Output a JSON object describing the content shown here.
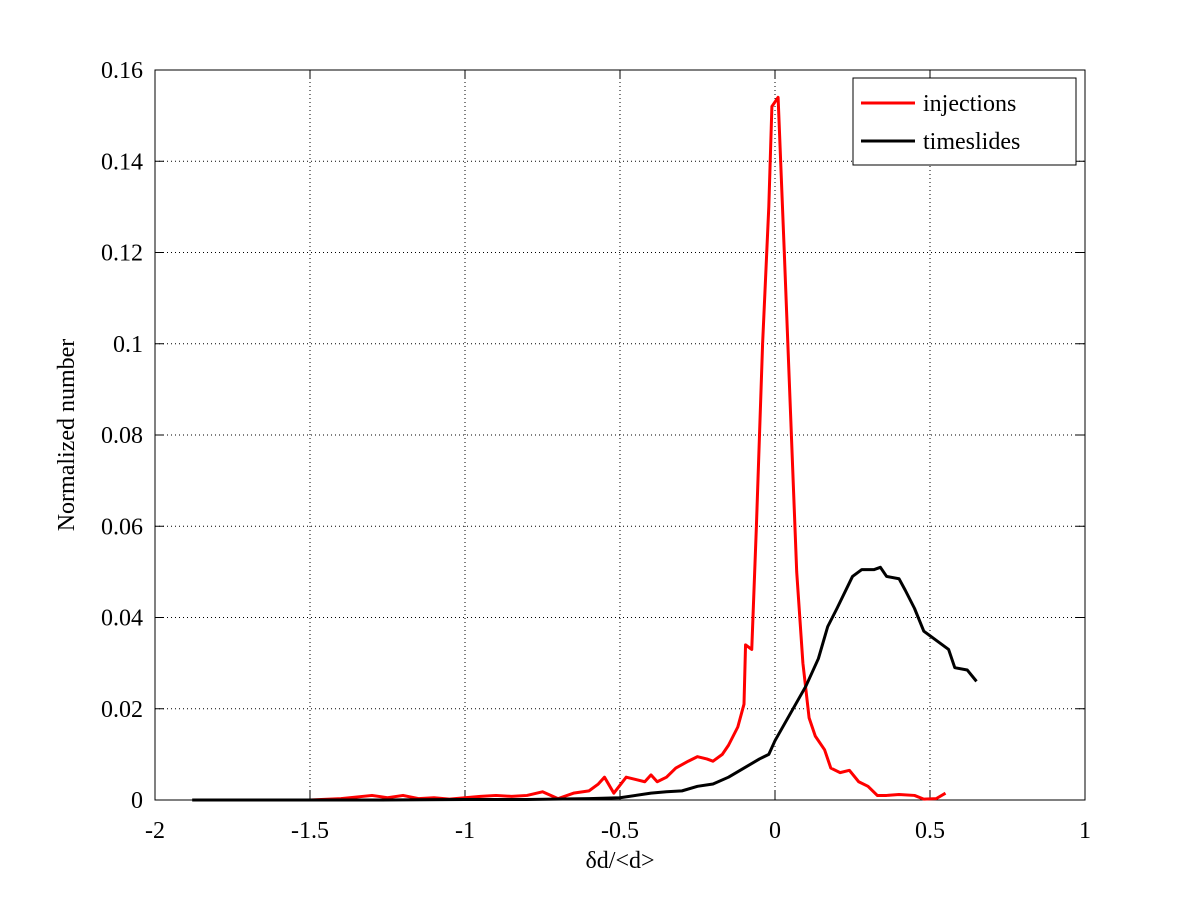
{
  "chart_data": {
    "type": "line",
    "xlabel": "δd/<d>",
    "ylabel": "Normalized number",
    "xlim": [
      -2,
      1
    ],
    "xticks": [
      -2,
      -1.5,
      -1,
      -0.5,
      0,
      0.5,
      1
    ],
    "ylim": [
      0,
      0.16
    ],
    "yticks": [
      0,
      0.02,
      0.04,
      0.06,
      0.08,
      0.1,
      0.12,
      0.14,
      0.16
    ],
    "grid": true,
    "legend": "northeast",
    "series": [
      {
        "name": "injections",
        "color": "#ff0000",
        "x": [
          -1.6,
          -1.5,
          -1.4,
          -1.3,
          -1.25,
          -1.2,
          -1.15,
          -1.1,
          -1.05,
          -1.0,
          -0.95,
          -0.9,
          -0.85,
          -0.8,
          -0.75,
          -0.7,
          -0.65,
          -0.6,
          -0.57,
          -0.55,
          -0.52,
          -0.48,
          -0.45,
          -0.42,
          -0.4,
          -0.38,
          -0.35,
          -0.32,
          -0.28,
          -0.25,
          -0.22,
          -0.2,
          -0.17,
          -0.15,
          -0.12,
          -0.1,
          -0.095,
          -0.075,
          -0.06,
          -0.04,
          -0.02,
          -0.01,
          0.0,
          0.01,
          0.03,
          0.05,
          0.07,
          0.09,
          0.11,
          0.13,
          0.16,
          0.18,
          0.21,
          0.24,
          0.27,
          0.3,
          0.33,
          0.36,
          0.4,
          0.45,
          0.48,
          0.52,
          0.55
        ],
        "values": [
          0,
          0,
          0.0003,
          0.001,
          0.0005,
          0.001,
          0.0003,
          0.0005,
          0.0002,
          0.0005,
          0.0008,
          0.001,
          0.0008,
          0.001,
          0.0018,
          0.0003,
          0.0015,
          0.002,
          0.0035,
          0.005,
          0.0015,
          0.005,
          0.0045,
          0.004,
          0.0055,
          0.004,
          0.005,
          0.007,
          0.0085,
          0.0095,
          0.009,
          0.0085,
          0.01,
          0.012,
          0.016,
          0.021,
          0.034,
          0.033,
          0.06,
          0.1,
          0.13,
          0.152,
          0.153,
          0.154,
          0.12,
          0.085,
          0.05,
          0.03,
          0.018,
          0.014,
          0.011,
          0.007,
          0.006,
          0.0065,
          0.004,
          0.003,
          0.001,
          0.001,
          0.0012,
          0.001,
          0.0002,
          0.0003,
          0.0015
        ]
      },
      {
        "name": "timeslides",
        "color": "#000000",
        "x": [
          -1.88,
          -1.6,
          -1.3,
          -1.0,
          -0.8,
          -0.6,
          -0.5,
          -0.4,
          -0.35,
          -0.3,
          -0.25,
          -0.2,
          -0.15,
          -0.1,
          -0.05,
          -0.02,
          0.0,
          0.05,
          0.1,
          0.14,
          0.17,
          0.2,
          0.25,
          0.28,
          0.32,
          0.34,
          0.36,
          0.4,
          0.42,
          0.45,
          0.48,
          0.52,
          0.56,
          0.58,
          0.62,
          0.65
        ],
        "values": [
          0,
          0,
          0,
          0.0001,
          0.0001,
          0.0003,
          0.0005,
          0.0015,
          0.0018,
          0.002,
          0.003,
          0.0035,
          0.005,
          0.007,
          0.009,
          0.01,
          0.013,
          0.019,
          0.025,
          0.031,
          0.038,
          0.042,
          0.049,
          0.0505,
          0.0505,
          0.051,
          0.049,
          0.0485,
          0.046,
          0.042,
          0.037,
          0.035,
          0.033,
          0.029,
          0.0285,
          0.026
        ]
      }
    ]
  }
}
